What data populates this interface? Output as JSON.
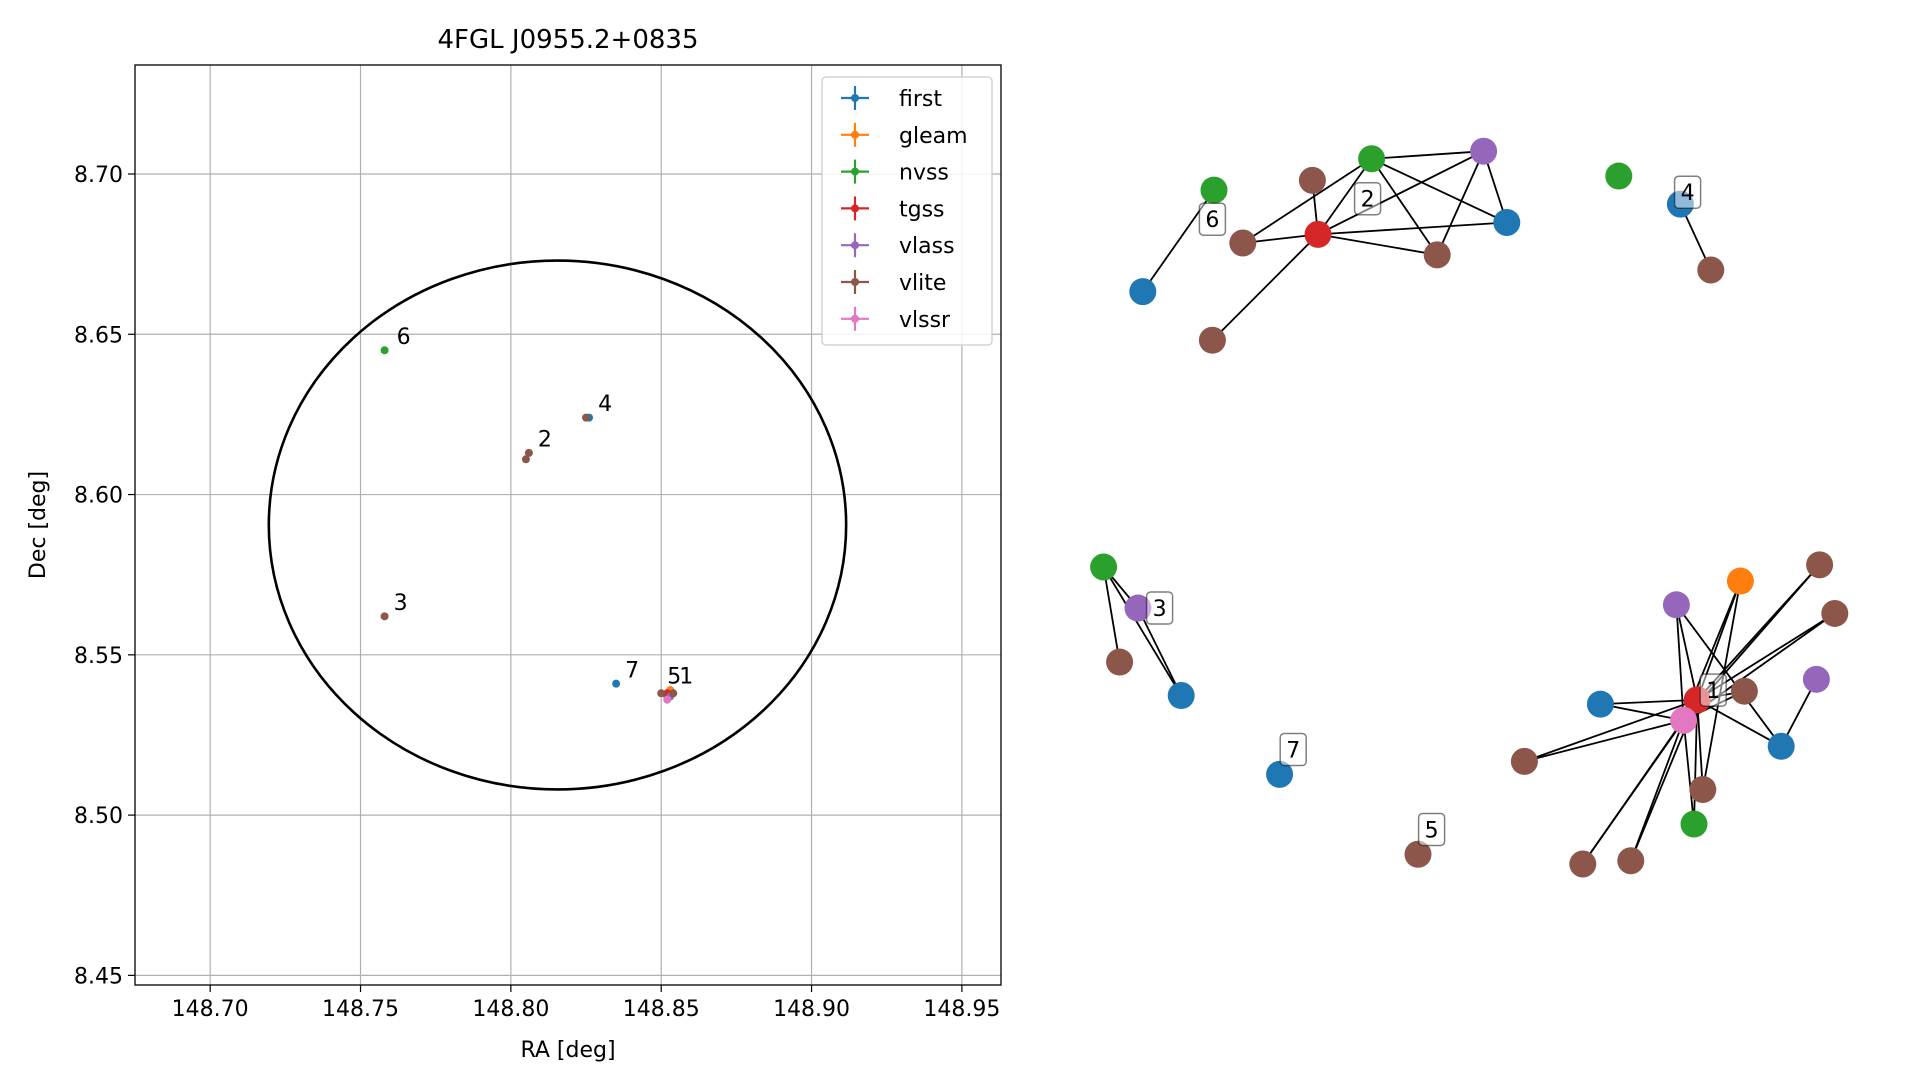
{
  "chart_data": [
    {
      "type": "scatter",
      "title": "4FGL J0955.2+0835",
      "xlabel": "RA [deg]",
      "ylabel": "Dec [deg]",
      "xlim": [
        148.675,
        148.963
      ],
      "ylim": [
        8.447,
        8.734
      ],
      "xticks": [
        "148.70",
        "148.75",
        "148.80",
        "148.85",
        "148.90",
        "148.95"
      ],
      "xtick_values": [
        148.7,
        148.75,
        148.8,
        148.85,
        148.9,
        148.95
      ],
      "yticks": [
        "8.45",
        "8.50",
        "8.55",
        "8.60",
        "8.65",
        "8.70"
      ],
      "ytick_values": [
        8.45,
        8.5,
        8.55,
        8.6,
        8.65,
        8.7
      ],
      "grid": true,
      "legend_position": "top-right",
      "series": [
        {
          "name": "first",
          "color": "#1f77b4",
          "points": [
            [
              148.826,
              8.624
            ],
            [
              148.835,
              8.541
            ],
            [
              148.852,
              8.538
            ]
          ]
        },
        {
          "name": "gleam",
          "color": "#ff7f0e",
          "points": [
            [
              148.853,
              8.539
            ]
          ]
        },
        {
          "name": "nvss",
          "color": "#2ca02c",
          "points": [
            [
              148.758,
              8.645
            ],
            [
              148.852,
              8.537
            ]
          ]
        },
        {
          "name": "tgss",
          "color": "#d62728",
          "points": [
            [
              148.852,
              8.538
            ]
          ]
        },
        {
          "name": "vlass",
          "color": "#9467bd",
          "points": [
            [
              148.853,
              8.537
            ]
          ]
        },
        {
          "name": "vlite",
          "color": "#8c564b",
          "points": [
            [
              148.805,
              8.611
            ],
            [
              148.806,
              8.613
            ],
            [
              148.825,
              8.624
            ],
            [
              148.758,
              8.562
            ],
            [
              148.85,
              8.538
            ],
            [
              148.854,
              8.538
            ]
          ]
        },
        {
          "name": "vlssr",
          "color": "#e377c2",
          "points": [
            [
              148.852,
              8.536
            ]
          ]
        }
      ],
      "circle": {
        "center": [
          148.8155,
          8.5905
        ],
        "radius_ra": 0.096,
        "radius_dec": 0.0825,
        "color": "#000000"
      },
      "annotations": [
        {
          "text": "6",
          "x": 148.762,
          "y": 8.647
        },
        {
          "text": "4",
          "x": 148.829,
          "y": 8.626
        },
        {
          "text": "2",
          "x": 148.809,
          "y": 8.615
        },
        {
          "text": "3",
          "x": 148.761,
          "y": 8.564
        },
        {
          "text": "7",
          "x": 148.838,
          "y": 8.543
        },
        {
          "text": "5",
          "x": 148.852,
          "y": 8.541
        },
        {
          "text": "1",
          "x": 148.856,
          "y": 8.541
        }
      ]
    },
    {
      "type": "network",
      "labels": [
        "1",
        "2",
        "3",
        "4",
        "5",
        "6",
        "7"
      ],
      "nodes": [
        {
          "id": "a1",
          "color": "#2ca02c",
          "x": 0.205,
          "y": 0.176
        },
        {
          "id": "a2",
          "color": "#1f77b4",
          "x": 0.116,
          "y": 0.27
        },
        {
          "id": "b1",
          "color": "#8c564b",
          "x": 0.328,
          "y": 0.167
        },
        {
          "id": "b2",
          "color": "#2ca02c",
          "x": 0.402,
          "y": 0.147
        },
        {
          "id": "b3",
          "color": "#9467bd",
          "x": 0.542,
          "y": 0.14
        },
        {
          "id": "b4",
          "color": "#8c564b",
          "x": 0.241,
          "y": 0.225
        },
        {
          "id": "b5",
          "color": "#d62728",
          "x": 0.335,
          "y": 0.217
        },
        {
          "id": "b6",
          "color": "#8c564b",
          "x": 0.484,
          "y": 0.236
        },
        {
          "id": "b7",
          "color": "#1f77b4",
          "x": 0.571,
          "y": 0.206
        },
        {
          "id": "b8",
          "color": "#8c564b",
          "x": 0.203,
          "y": 0.315
        },
        {
          "id": "c1",
          "color": "#2ca02c",
          "x": 0.711,
          "y": 0.163
        },
        {
          "id": "c2",
          "color": "#1f77b4",
          "x": 0.788,
          "y": 0.189
        },
        {
          "id": "c3",
          "color": "#8c564b",
          "x": 0.826,
          "y": 0.25
        },
        {
          "id": "d1",
          "color": "#2ca02c",
          "x": 0.067,
          "y": 0.525
        },
        {
          "id": "d2",
          "color": "#9467bd",
          "x": 0.11,
          "y": 0.563
        },
        {
          "id": "d3",
          "color": "#8c564b",
          "x": 0.087,
          "y": 0.613
        },
        {
          "id": "d4",
          "color": "#1f77b4",
          "x": 0.164,
          "y": 0.644
        },
        {
          "id": "e1",
          "color": "#1f77b4",
          "x": 0.287,
          "y": 0.717
        },
        {
          "id": "f1",
          "color": "#8c564b",
          "x": 0.46,
          "y": 0.791
        },
        {
          "id": "g1",
          "color": "#9467bd",
          "x": 0.783,
          "y": 0.56
        },
        {
          "id": "g2",
          "color": "#ff7f0e",
          "x": 0.863,
          "y": 0.538
        },
        {
          "id": "g3",
          "color": "#8c564b",
          "x": 0.962,
          "y": 0.523
        },
        {
          "id": "g4",
          "color": "#8c564b",
          "x": 0.981,
          "y": 0.568
        },
        {
          "id": "g5",
          "color": "#9467bd",
          "x": 0.958,
          "y": 0.629
        },
        {
          "id": "g6",
          "color": "#8c564b",
          "x": 0.868,
          "y": 0.64
        },
        {
          "id": "g7",
          "color": "#d62728",
          "x": 0.809,
          "y": 0.648
        },
        {
          "id": "g8",
          "color": "#1f77b4",
          "x": 0.688,
          "y": 0.652
        },
        {
          "id": "g9",
          "color": "#e377c2",
          "x": 0.792,
          "y": 0.667
        },
        {
          "id": "g10",
          "color": "#1f77b4",
          "x": 0.914,
          "y": 0.691
        },
        {
          "id": "g11",
          "color": "#8c564b",
          "x": 0.593,
          "y": 0.705
        },
        {
          "id": "g12",
          "color": "#8c564b",
          "x": 0.816,
          "y": 0.731
        },
        {
          "id": "g13",
          "color": "#2ca02c",
          "x": 0.805,
          "y": 0.763
        },
        {
          "id": "g14",
          "color": "#8c564b",
          "x": 0.666,
          "y": 0.8
        },
        {
          "id": "g15",
          "color": "#8c564b",
          "x": 0.726,
          "y": 0.797
        }
      ],
      "edges": [
        [
          "a1",
          "a2"
        ],
        [
          "b1",
          "b5"
        ],
        [
          "b2",
          "b5"
        ],
        [
          "b2",
          "b3"
        ],
        [
          "b2",
          "b6"
        ],
        [
          "b2",
          "b7"
        ],
        [
          "b3",
          "b5"
        ],
        [
          "b3",
          "b6"
        ],
        [
          "b3",
          "b7"
        ],
        [
          "b4",
          "b5"
        ],
        [
          "b4",
          "b2"
        ],
        [
          "b5",
          "b6"
        ],
        [
          "b5",
          "b7"
        ],
        [
          "b5",
          "b8"
        ],
        [
          "c2",
          "c3"
        ],
        [
          "d1",
          "d2"
        ],
        [
          "d1",
          "d3"
        ],
        [
          "d1",
          "d4"
        ],
        [
          "d2",
          "d4"
        ],
        [
          "g1",
          "g7"
        ],
        [
          "g1",
          "g9"
        ],
        [
          "g1",
          "g10"
        ],
        [
          "g2",
          "g7"
        ],
        [
          "g2",
          "g9"
        ],
        [
          "g2",
          "g12"
        ],
        [
          "g3",
          "g7"
        ],
        [
          "g3",
          "g9"
        ],
        [
          "g4",
          "g7"
        ],
        [
          "g4",
          "g9"
        ],
        [
          "g5",
          "g10"
        ],
        [
          "g6",
          "g7"
        ],
        [
          "g6",
          "g9"
        ],
        [
          "g7",
          "g8"
        ],
        [
          "g7",
          "g9"
        ],
        [
          "g7",
          "g10"
        ],
        [
          "g7",
          "g11"
        ],
        [
          "g7",
          "g12"
        ],
        [
          "g7",
          "g13"
        ],
        [
          "g7",
          "g14"
        ],
        [
          "g7",
          "g15"
        ],
        [
          "g8",
          "g9"
        ],
        [
          "g9",
          "g11"
        ],
        [
          "g9",
          "g13"
        ],
        [
          "g9",
          "g14"
        ],
        [
          "g9",
          "g15"
        ]
      ],
      "node_labels": [
        {
          "text": "6",
          "x": 0.203,
          "y": 0.203
        },
        {
          "text": "2",
          "x": 0.397,
          "y": 0.184
        },
        {
          "text": "4",
          "x": 0.797,
          "y": 0.178
        },
        {
          "text": "3",
          "x": 0.137,
          "y": 0.563
        },
        {
          "text": "7",
          "x": 0.304,
          "y": 0.694
        },
        {
          "text": "5",
          "x": 0.477,
          "y": 0.768
        },
        {
          "text": "1",
          "x": 0.829,
          "y": 0.639
        }
      ]
    }
  ]
}
